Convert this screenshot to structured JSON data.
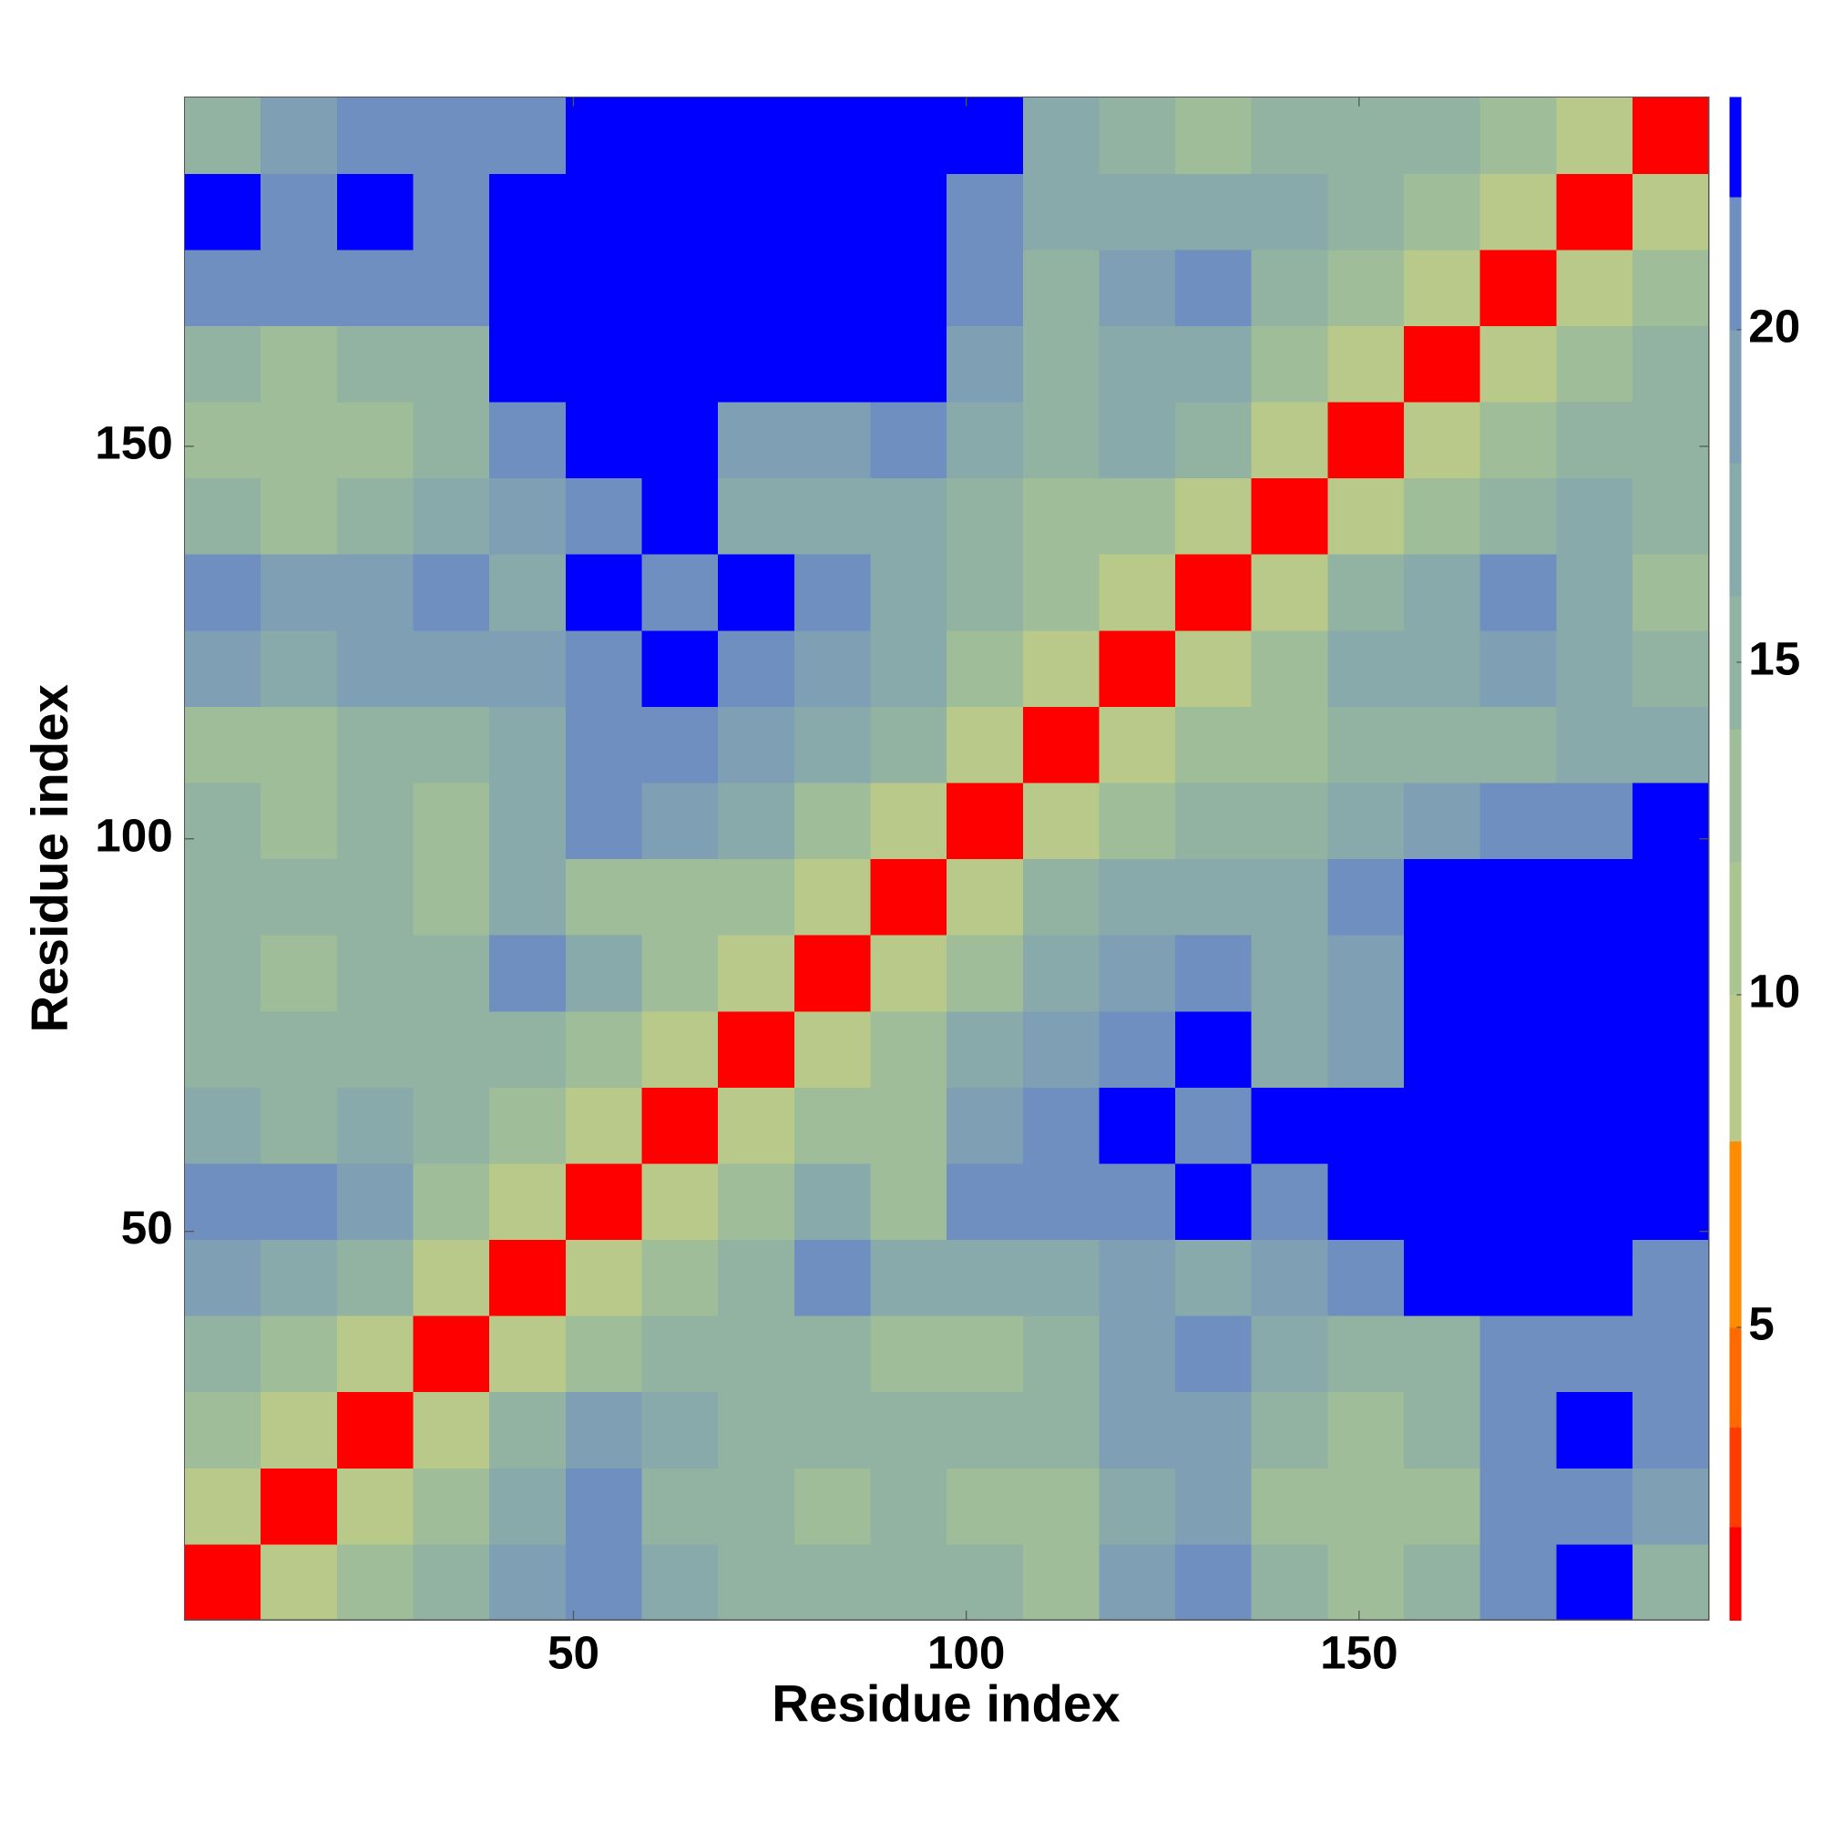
{
  "chart_data": {
    "type": "heatmap",
    "x_label": "Residue index",
    "y_label": "Residue index",
    "xlim": [
      0.5,
      194.5
    ],
    "ylim": [
      0.5,
      194.5
    ],
    "xticks": [
      50,
      100,
      150
    ],
    "yticks": [
      50,
      100,
      150
    ],
    "x": [
      5.35,
      15.05,
      24.75,
      34.45,
      44.15,
      53.85,
      63.55,
      73.25,
      82.95,
      92.65,
      102.35,
      112.05,
      121.75,
      131.45,
      141.15,
      150.85,
      160.55,
      170.25,
      179.95,
      189.65
    ],
    "y": [
      5.35,
      15.05,
      24.75,
      34.45,
      44.15,
      53.85,
      63.55,
      73.25,
      82.95,
      92.65,
      102.35,
      112.05,
      121.75,
      131.45,
      141.15,
      150.85,
      160.55,
      170.25,
      179.95,
      189.65
    ],
    "z": [
      [
        1.5,
        9,
        12,
        14,
        18,
        20,
        16,
        15,
        14,
        15,
        14,
        13,
        18,
        20,
        14,
        13,
        14,
        21,
        23,
        15
      ],
      [
        9,
        1.5,
        9,
        12,
        17,
        20,
        15,
        14,
        13,
        14,
        12,
        12,
        17,
        19,
        13,
        12,
        13,
        20,
        21,
        18
      ],
      [
        12,
        9,
        1.5,
        9,
        14,
        18,
        16,
        15,
        14,
        15,
        14,
        15,
        18,
        19,
        15,
        13,
        14,
        20,
        22,
        21
      ],
      [
        14,
        12,
        9,
        1.5,
        9,
        12,
        14,
        14,
        14,
        12,
        13,
        14,
        18,
        20,
        16,
        15,
        15,
        20,
        21,
        20
      ],
      [
        18,
        17,
        14,
        9,
        1.5,
        9,
        12,
        15,
        20,
        16,
        16,
        16,
        18,
        16,
        18,
        20,
        23,
        23,
        23,
        20
      ],
      [
        20,
        20,
        18,
        12,
        9,
        1.5,
        9,
        13,
        16,
        12,
        21,
        21,
        21,
        22,
        21,
        23,
        23,
        23,
        23,
        23
      ],
      [
        16,
        15,
        16,
        14,
        12,
        9,
        1.5,
        9,
        12,
        13,
        18,
        20,
        22,
        21,
        23,
        23,
        23,
        23,
        23,
        23
      ],
      [
        15,
        14,
        15,
        14,
        15,
        13,
        9,
        1.5,
        9,
        12,
        16,
        18,
        21,
        22,
        17,
        19,
        23,
        23,
        23,
        23
      ],
      [
        14,
        13,
        14,
        14,
        20,
        16,
        12,
        9,
        1.5,
        9,
        12,
        16,
        19,
        21,
        16,
        18,
        23,
        23,
        23,
        23
      ],
      [
        15,
        14,
        15,
        12,
        16,
        12,
        13,
        12,
        9,
        1.5,
        9,
        14,
        16,
        17,
        17,
        20,
        23,
        23,
        23,
        23
      ],
      [
        14,
        12,
        14,
        13,
        16,
        21,
        18,
        16,
        12,
        9,
        1.5,
        9,
        12,
        14,
        15,
        17,
        19,
        20,
        21,
        22
      ],
      [
        13,
        12,
        15,
        14,
        16,
        21,
        20,
        18,
        16,
        14,
        9,
        1.5,
        9,
        12,
        12,
        14,
        15,
        15,
        16,
        17
      ],
      [
        18,
        17,
        18,
        18,
        18,
        21,
        22,
        21,
        19,
        16,
        12,
        9,
        1.5,
        9,
        12,
        16,
        17,
        18,
        16,
        14
      ],
      [
        20,
        19,
        19,
        20,
        16,
        22,
        21,
        22,
        21,
        17,
        14,
        12,
        9,
        1.5,
        9,
        14,
        17,
        20,
        17,
        12
      ],
      [
        14,
        13,
        15,
        16,
        18,
        21,
        23,
        17,
        16,
        17,
        15,
        12,
        12,
        9,
        1.5,
        9,
        12,
        15,
        16,
        14
      ],
      [
        13,
        12,
        13,
        15,
        20,
        23,
        23,
        19,
        18,
        20,
        17,
        14,
        16,
        14,
        9,
        1.5,
        9,
        12,
        14,
        15
      ],
      [
        14,
        13,
        14,
        15,
        23,
        23,
        23,
        23,
        23,
        23,
        19,
        15,
        17,
        17,
        12,
        9,
        1.5,
        9,
        12,
        14
      ],
      [
        21,
        20,
        20,
        20,
        23,
        23,
        23,
        23,
        23,
        23,
        20,
        15,
        18,
        20,
        15,
        12,
        9,
        1.5,
        9,
        12
      ],
      [
        23,
        21,
        22,
        21,
        23,
        23,
        23,
        23,
        23,
        23,
        21,
        16,
        16,
        17,
        16,
        14,
        12,
        9,
        1.5,
        9
      ],
      [
        15,
        18,
        21,
        20,
        20,
        23,
        23,
        23,
        23,
        23,
        22,
        17,
        14,
        12,
        14,
        15,
        14,
        12,
        9,
        1.5
      ]
    ],
    "colorbar": {
      "zlim": [
        0.6,
        23.5
      ],
      "ticks": [
        5,
        10,
        15,
        20
      ],
      "bounds": [
        0.6,
        2,
        3.5,
        5,
        7.8,
        10,
        12,
        14,
        16,
        18,
        20,
        22,
        23.5
      ],
      "colors": [
        "#ff0000",
        "#ff3c00",
        "#ff6a00",
        "#ff8c00",
        "#b8c98a",
        "#aac690",
        "#9ebd98",
        "#92b3a2",
        "#88aaab",
        "#7f9fb4",
        "#6e8fbf",
        "#0000ff"
      ]
    }
  }
}
